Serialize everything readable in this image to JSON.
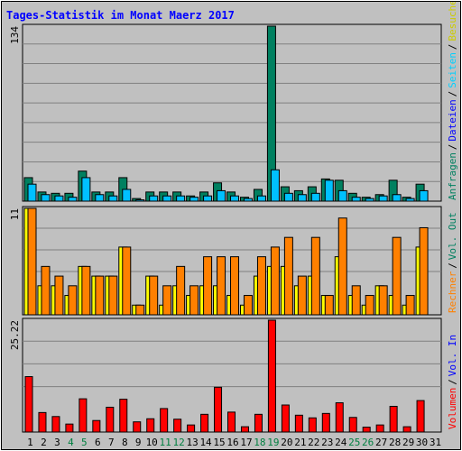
{
  "title": "Tages-Statistik im Monat Maerz 2017",
  "colors": {
    "background": "#c0c0c0",
    "grid": "#808080",
    "title": "#0000ff",
    "weekend": "#008040",
    "weekday": "#000000",
    "hits": "#008060",
    "files": "#00c0ff",
    "pages": "#00e0ff",
    "visits": "#ffff00",
    "sites": "#ff8000",
    "kbytes": "#ff0000"
  },
  "chart_data": [
    {
      "type": "bar",
      "categories": [
        "1",
        "2",
        "3",
        "4",
        "5",
        "6",
        "7",
        "8",
        "9",
        "10",
        "11",
        "12",
        "13",
        "14",
        "15",
        "16",
        "17",
        "18",
        "19",
        "20",
        "21",
        "22",
        "23",
        "24",
        "25",
        "26",
        "27",
        "28",
        "29",
        "30",
        "31"
      ],
      "weekend_days": [
        "4",
        "5",
        "11",
        "12",
        "18",
        "19",
        "25",
        "26"
      ],
      "ymax_label": "134",
      "ylim": [
        0,
        134
      ],
      "legend": [
        {
          "label": "Anfragen",
          "color": "#008060"
        },
        {
          "label": "/",
          "color": "#000000"
        },
        {
          "label": "Dateien",
          "color": "#0000ff"
        },
        {
          "label": "/",
          "color": "#000000"
        },
        {
          "label": "Seiten",
          "color": "#00d0ff"
        },
        {
          "label": "/",
          "color": "#000000"
        },
        {
          "label": "Besuche",
          "color": "#cccc00"
        }
      ],
      "series": [
        {
          "name": "Anfragen",
          "values": [
            18,
            7,
            6,
            6,
            23,
            7,
            7,
            18,
            2,
            7,
            7,
            7,
            4,
            7,
            14,
            7,
            3,
            9,
            134,
            11,
            8,
            11,
            17,
            16,
            6,
            3,
            5,
            16,
            3,
            13,
            0
          ]
        },
        {
          "name": "Dateien",
          "values": [
            13,
            5,
            4,
            3,
            18,
            5,
            4,
            9,
            1,
            4,
            4,
            4,
            3,
            4,
            8,
            4,
            2,
            4,
            24,
            6,
            5,
            6,
            16,
            8,
            3,
            2,
            4,
            5,
            2,
            8,
            0
          ]
        },
        {
          "name": "Seiten",
          "values": [
            13,
            5,
            4,
            3,
            18,
            5,
            4,
            9,
            1,
            4,
            4,
            4,
            3,
            4,
            8,
            4,
            2,
            4,
            24,
            6,
            5,
            6,
            16,
            8,
            3,
            2,
            4,
            5,
            2,
            8,
            0
          ]
        }
      ]
    },
    {
      "type": "bar",
      "categories": [
        "1",
        "2",
        "3",
        "4",
        "5",
        "6",
        "7",
        "8",
        "9",
        "10",
        "11",
        "12",
        "13",
        "14",
        "15",
        "16",
        "17",
        "18",
        "19",
        "20",
        "21",
        "22",
        "23",
        "24",
        "25",
        "26",
        "27",
        "28",
        "29",
        "30",
        "31"
      ],
      "ymax_label": "11",
      "ylim": [
        0,
        11
      ],
      "legend": [
        {
          "label": "Rechner",
          "color": "#ff8000"
        },
        {
          "label": "/",
          "color": "#000000"
        },
        {
          "label": "Vol. Out",
          "color": "#008060"
        }
      ],
      "series": [
        {
          "name": "Besuche",
          "values": [
            11,
            3,
            3,
            2,
            5,
            4,
            4,
            7,
            1,
            4,
            1,
            3,
            2,
            3,
            3,
            2,
            1,
            4,
            5,
            5,
            3,
            4,
            2,
            6,
            2,
            1,
            3,
            2,
            1,
            7,
            0
          ]
        },
        {
          "name": "Rechner",
          "values": [
            11,
            5,
            4,
            3,
            5,
            4,
            4,
            7,
            1,
            4,
            3,
            5,
            3,
            6,
            6,
            6,
            2,
            6,
            7,
            8,
            4,
            8,
            2,
            10,
            3,
            2,
            3,
            8,
            2,
            9,
            0
          ]
        }
      ]
    },
    {
      "type": "bar",
      "categories": [
        "1",
        "2",
        "3",
        "4",
        "5",
        "6",
        "7",
        "8",
        "9",
        "10",
        "11",
        "12",
        "13",
        "14",
        "15",
        "16",
        "17",
        "18",
        "19",
        "20",
        "21",
        "22",
        "23",
        "24",
        "25",
        "26",
        "27",
        "28",
        "29",
        "30",
        "31"
      ],
      "ymax_label": "25.22",
      "ylim": [
        0,
        25.22
      ],
      "legend": [
        {
          "label": "Volumen",
          "color": "#ff0000"
        },
        {
          "label": "/",
          "color": "#000000"
        },
        {
          "label": "Vol. In",
          "color": "#0000ff"
        }
      ],
      "series": [
        {
          "name": "Volumen",
          "values": [
            12.5,
            4.4,
            3.5,
            1.8,
            7.5,
            2.6,
            5.6,
            7.4,
            2.3,
            3.0,
            5.3,
            2.9,
            1.6,
            4.0,
            10.1,
            4.5,
            1.2,
            4.0,
            25.22,
            6.1,
            3.8,
            3.2,
            4.2,
            6.6,
            3.3,
            1.1,
            1.6,
            5.8,
            1.2,
            7.1,
            0
          ]
        }
      ]
    }
  ]
}
